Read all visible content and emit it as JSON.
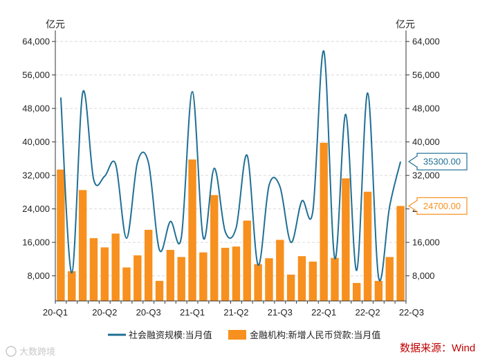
{
  "chart_data": {
    "type": "bar",
    "y_unit_left": "亿元",
    "y_unit_right": "亿元",
    "ylim": [
      2000,
      66000
    ],
    "yticks": [
      8000,
      16000,
      24000,
      32000,
      40000,
      48000,
      56000,
      64000
    ],
    "ytick_labels": [
      "8,000",
      "16,000",
      "24,000",
      "32,000",
      "40,000",
      "48,000",
      "56,000",
      "64,000"
    ],
    "quarter_labels": [
      {
        "label": "20-Q1",
        "index": 0
      },
      {
        "label": "20-Q2",
        "index": 4.5
      },
      {
        "label": "20-Q3",
        "index": 8.5
      },
      {
        "label": "21-Q1",
        "index": 12.5
      },
      {
        "label": "21-Q2",
        "index": 16.5
      },
      {
        "label": "21-Q3",
        "index": 20.5
      },
      {
        "label": "22-Q1",
        "index": 24.5
      },
      {
        "label": "22-Q2",
        "index": 28.5
      },
      {
        "label": "22-Q3",
        "index": 32.5
      }
    ],
    "series": [
      {
        "name": "社会融资规模:当月值",
        "type": "line",
        "color": "#1f6f94",
        "values": [
          50600,
          8700,
          51800,
          31000,
          31800,
          34700,
          17000,
          35200,
          35000,
          14200,
          21000,
          17200,
          52000,
          17100,
          33700,
          18600,
          19500,
          36800,
          10600,
          29600,
          29300,
          16000,
          25900,
          23500,
          61700,
          12200,
          46600,
          9300,
          51700,
          7600,
          24500,
          35300
        ]
      },
      {
        "name": "金融机构:新增人民币贷款:当月值",
        "type": "bar",
        "color": "#f7901e",
        "values": [
          33400,
          9100,
          28500,
          17000,
          14800,
          18100,
          10000,
          12900,
          19000,
          6800,
          14200,
          12500,
          35800,
          13600,
          27300,
          14700,
          15000,
          21200,
          10800,
          12200,
          16600,
          8300,
          12700,
          11400,
          39800,
          12300,
          31300,
          6300,
          28100,
          6800,
          12500,
          24700
        ]
      }
    ],
    "callouts": [
      {
        "text": "35300.00",
        "series": 0
      },
      {
        "text": "24700.00",
        "series": 1
      }
    ],
    "legend_position": "bottom",
    "grid": true
  },
  "source_text": "数据来源：Wind",
  "watermark_text": "大数跨境"
}
